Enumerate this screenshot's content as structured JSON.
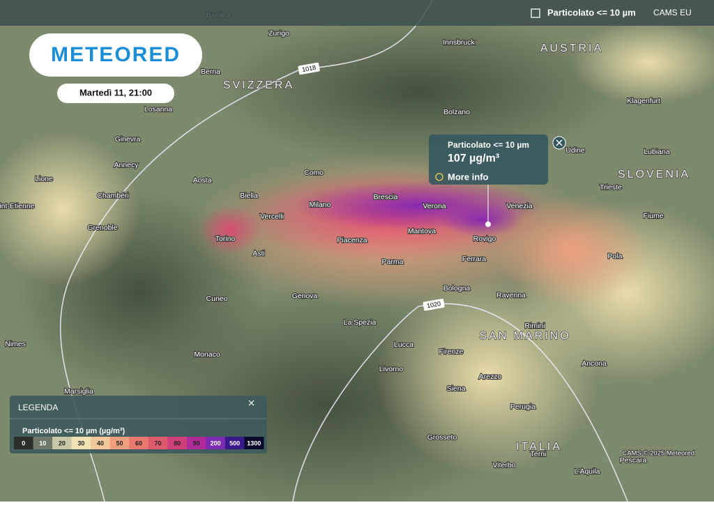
{
  "header": {
    "layer": "Particolato <= 10 µm",
    "source": "CAMS EU"
  },
  "logo": "METEORED",
  "date": "Martedì 11, 21:00",
  "countries": [
    "AUSTRIA",
    "SVIZZERA",
    "SLOVENIA",
    "SAN MARINO",
    "ITALIA"
  ],
  "isobars": [
    "1018",
    "1020"
  ],
  "cities": [
    "Basilea",
    "Zurigo",
    "Innsbruck",
    "Berna",
    "Losanna",
    "Bolzano",
    "Klagenfurt",
    "Ginevra",
    "Udine",
    "Lubiana",
    "Annecy",
    "Como",
    "Aosta",
    "Lione",
    "Trieste",
    "Biella",
    "Chambéri",
    "Saint-Etienne",
    "Milano",
    "Brescia",
    "Verona",
    "Venezia",
    "Vercelli",
    "Grenoble",
    "Fiume",
    "Mantova",
    "Torino",
    "Rovigo",
    "Asti",
    "Piacenza",
    "Pola",
    "Parma",
    "Ferrara",
    "Cuneo",
    "Genova",
    "Bologna",
    "Ravenna",
    "La Spezia",
    "Rimini",
    "Nimes",
    "Monaco",
    "Lucca",
    "Firenze",
    "Ancona",
    "Livorno",
    "Arezzo",
    "Marsiglia",
    "Siena",
    "Perugia",
    "Grosseto",
    "Terni",
    "Viterbo",
    "Pescara",
    "L'Aquila"
  ],
  "popup": {
    "title": "Particolato <= 10 µm",
    "value": "107 µg/m³",
    "link": "More info"
  },
  "legend": {
    "title": "LEGENDA",
    "subtitle": "Particolato <= 10 µm (µg/m³)",
    "values": [
      0,
      10,
      20,
      30,
      40,
      50,
      60,
      70,
      80,
      90,
      200,
      500,
      1300
    ],
    "colors": [
      "#2b302b",
      "#6f7a6a",
      "#c9c7a8",
      "#efe3b5",
      "#f2c79a",
      "#ef9f7e",
      "#e7786f",
      "#dc5a6a",
      "#cf3f7a",
      "#b02a9a",
      "#7a2bb0",
      "#3a1a8a",
      "#0a0a2a"
    ]
  },
  "attribution": "CAMS © 2025 Meteored"
}
